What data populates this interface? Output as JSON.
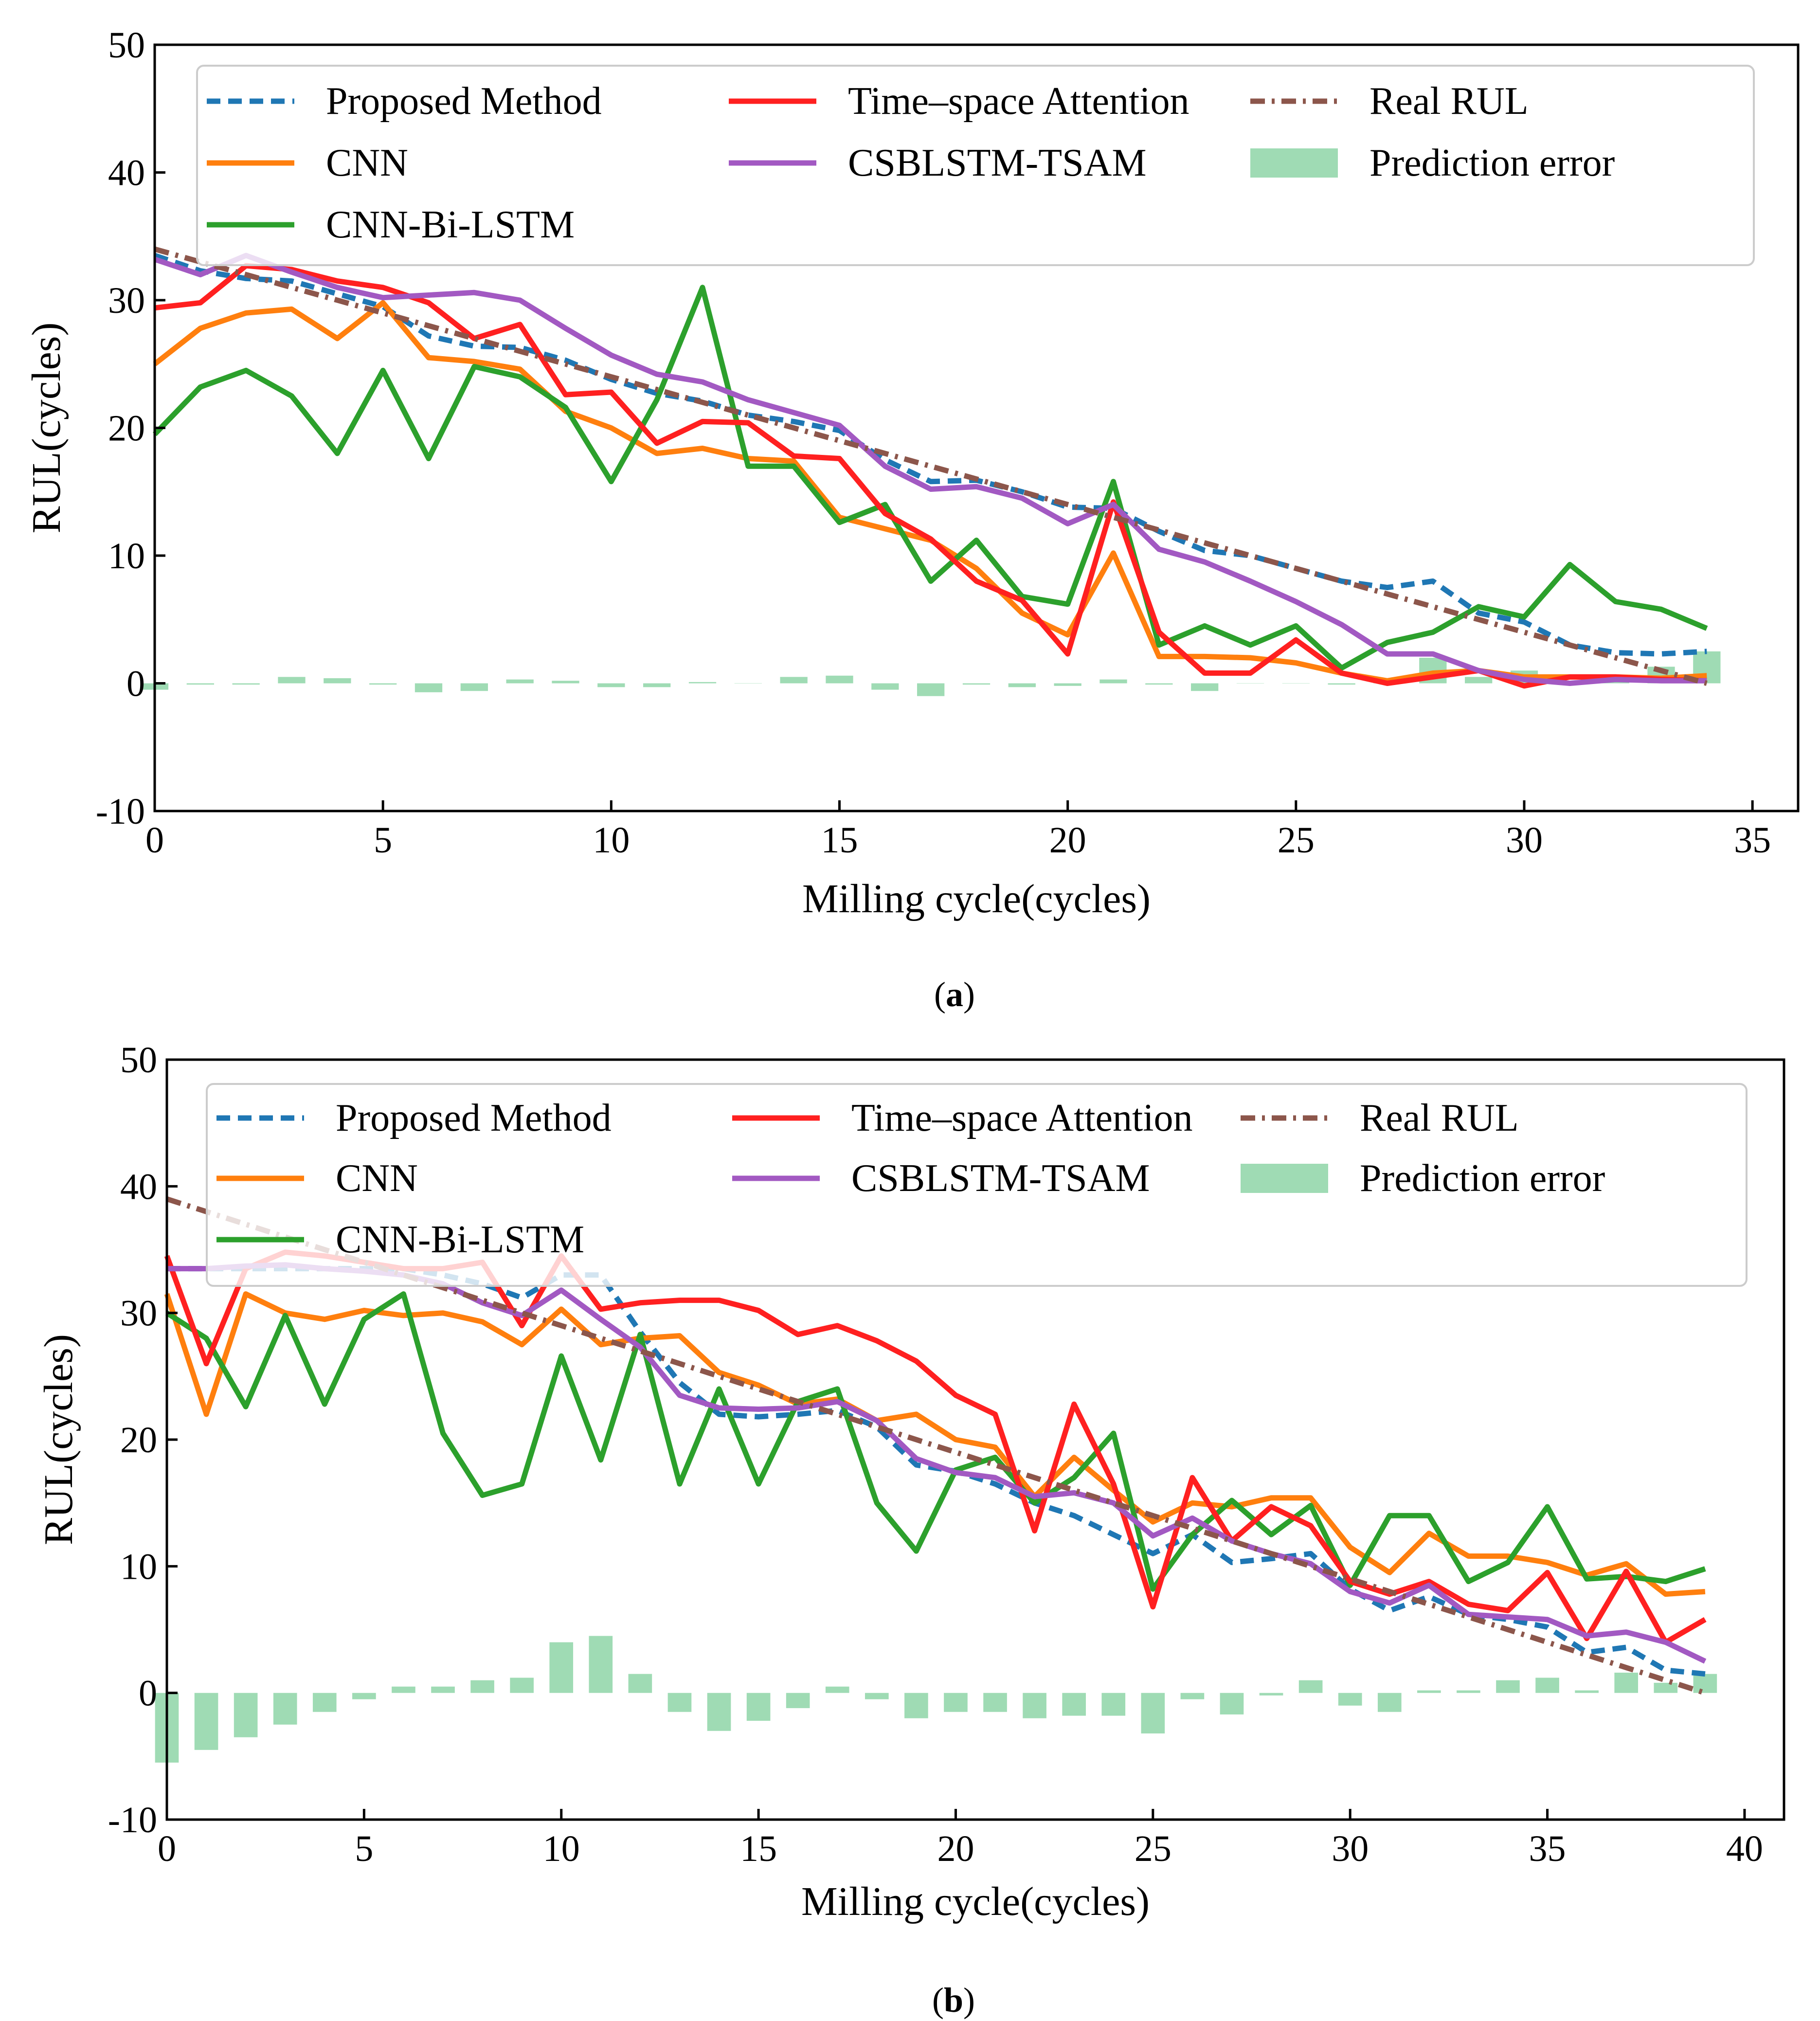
{
  "colors": {
    "proposed": "#1f77b4",
    "cnn": "#ff7f0e",
    "cnn_bilstm": "#2ca02c",
    "time_space": "#ff2020",
    "csblstm": "#a259c2",
    "real": "#8c564b",
    "error": "#7fcf9b"
  },
  "chart_data": [
    {
      "type": "line",
      "caption_letter": "a",
      "caption": "(a)",
      "xlabel": "Milling cycle(cycles)",
      "ylabel": "RUL(cycles)",
      "xlim": [
        0,
        36
      ],
      "ylim": [
        -10,
        50
      ],
      "xticks": [
        0,
        5,
        10,
        15,
        20,
        25,
        30,
        35
      ],
      "yticks": [
        -10,
        0,
        10,
        20,
        30,
        40,
        50
      ],
      "legend": {
        "position": "top",
        "entries": [
          "Proposed Method",
          "Time–space Attention",
          "Real RUL",
          "CNN",
          "CSBLSTM-TSAM",
          "Prediction error",
          "CNN-Bi-LSTM"
        ]
      },
      "x": [
        0,
        1,
        2,
        3,
        4,
        5,
        6,
        7,
        8,
        9,
        10,
        11,
        12,
        13,
        14,
        15,
        16,
        17,
        18,
        19,
        20,
        21,
        22,
        23,
        24,
        25,
        26,
        27,
        28,
        29,
        30,
        31,
        32,
        33,
        34
      ],
      "series": [
        {
          "name": "Proposed Method",
          "key": "proposed",
          "style": "dashed",
          "values": [
            33.5,
            32.3,
            31.7,
            31.5,
            30.5,
            29.5,
            27.2,
            26.4,
            26.3,
            25.3,
            23.8,
            22.7,
            22.1,
            21,
            20.5,
            19.8,
            17.5,
            15.8,
            15.9,
            15,
            13.8,
            13.7,
            11.9,
            10.4,
            10,
            9,
            8,
            7.5,
            8,
            5.5,
            4.8,
            3,
            2.4,
            2.3,
            2.5
          ]
        },
        {
          "name": "CNN",
          "key": "cnn",
          "style": "solid",
          "values": [
            25,
            27.8,
            29,
            29.3,
            27,
            29.8,
            25.5,
            25.2,
            24.6,
            21.3,
            20,
            18,
            18.4,
            17.6,
            17.4,
            13,
            12.1,
            11.2,
            9,
            5.5,
            3.8,
            10.2,
            2.1,
            2.1,
            2,
            1.6,
            0.8,
            0.2,
            0.8,
            1,
            0.5,
            0.5,
            0.5,
            0.4,
            0.6
          ]
        },
        {
          "name": "CNN-Bi-LSTM",
          "key": "cnn_bilstm",
          "style": "solid",
          "values": [
            19.5,
            23.2,
            24.5,
            22.5,
            18,
            24.5,
            17.6,
            24.8,
            24,
            21.6,
            15.8,
            22.2,
            31,
            17,
            17,
            12.6,
            14,
            8,
            11.2,
            6.8,
            6.2,
            15.8,
            3,
            4.5,
            3,
            4.5,
            1.2,
            3.2,
            4,
            6,
            5.2,
            9.3,
            6.4,
            5.8,
            4.3
          ]
        },
        {
          "name": "Time–space Attention",
          "key": "time_space",
          "style": "solid",
          "values": [
            29.4,
            29.8,
            32.7,
            32.4,
            31.5,
            31,
            29.8,
            27,
            28.1,
            22.6,
            22.8,
            18.8,
            20.5,
            20.4,
            17.8,
            17.6,
            13.3,
            11.3,
            8,
            6.5,
            2.3,
            14.2,
            4,
            0.8,
            0.8,
            3.4,
            0.8,
            0,
            0.5,
            1,
            -0.2,
            0.5,
            0.5,
            0.3,
            0.2
          ]
        },
        {
          "name": "CSBLSTM-TSAM",
          "key": "csblstm",
          "style": "solid",
          "values": [
            33.2,
            32,
            33.5,
            32.2,
            31,
            30.2,
            30.4,
            30.6,
            30,
            27.8,
            25.7,
            24.2,
            23.6,
            22.2,
            21.2,
            20.2,
            17,
            15.2,
            15.4,
            14.5,
            12.5,
            14,
            10.5,
            9.5,
            8,
            6.4,
            4.6,
            2.3,
            2.3,
            1,
            0.3,
            0,
            0.3,
            0.2,
            0.2
          ]
        },
        {
          "name": "Real RUL",
          "key": "real",
          "style": "dashdot",
          "values": [
            34,
            33,
            32,
            31,
            30,
            29,
            28,
            27,
            26,
            25,
            24,
            23,
            22,
            21,
            20,
            19,
            18,
            17,
            16,
            15,
            14,
            13,
            12,
            11,
            10,
            9,
            8,
            7,
            6,
            5,
            4,
            3,
            2,
            1,
            0
          ]
        }
      ],
      "prediction_error": [
        -0.5,
        -0.1,
        -0.1,
        0.5,
        0.4,
        -0.1,
        -0.7,
        -0.6,
        0.3,
        0.2,
        -0.3,
        -0.3,
        0.1,
        0,
        0.5,
        0.6,
        -0.5,
        -1,
        -0.1,
        -0.3,
        -0.2,
        0.3,
        -0.1,
        -0.6,
        0,
        0,
        -0.1,
        0.4,
        2,
        0.5,
        1,
        0,
        0.4,
        1.3,
        2.5
      ]
    },
    {
      "type": "line",
      "caption_letter": "b",
      "caption": "(b)",
      "xlabel": "Milling cycle(cycles)",
      "ylabel": "RUL(cycles)",
      "xlim": [
        0,
        41
      ],
      "ylim": [
        -10,
        50
      ],
      "xticks": [
        0,
        5,
        10,
        15,
        20,
        25,
        30,
        35,
        40
      ],
      "yticks": [
        -10,
        0,
        10,
        20,
        30,
        40,
        50
      ],
      "legend": {
        "position": "top",
        "entries": [
          "Proposed Method",
          "Time–space Attention",
          "Real RUL",
          "CNN",
          "CSBLSTM-TSAM",
          "Prediction error",
          "CNN-Bi-LSTM"
        ]
      },
      "x": [
        0,
        1,
        2,
        3,
        4,
        5,
        6,
        7,
        8,
        9,
        10,
        11,
        12,
        13,
        14,
        15,
        16,
        17,
        18,
        19,
        20,
        21,
        22,
        23,
        24,
        25,
        26,
        27,
        28,
        29,
        30,
        31,
        32,
        33,
        34,
        35,
        36,
        37,
        38,
        39
      ],
      "series": [
        {
          "name": "Proposed Method",
          "key": "proposed",
          "style": "dashed",
          "values": [
            33.5,
            33.5,
            33.5,
            33.5,
            33.5,
            33.5,
            33.5,
            33,
            32.3,
            31.2,
            33,
            33,
            28.5,
            24.5,
            22,
            21.8,
            22,
            22.3,
            21,
            18,
            17.5,
            16.5,
            15,
            14,
            12.5,
            11,
            12.5,
            10.3,
            10.6,
            11,
            8.2,
            6.5,
            7.6,
            6.2,
            5.8,
            5.2,
            3.2,
            3.6,
            1.8,
            1.5
          ]
        },
        {
          "name": "CNN",
          "key": "cnn",
          "style": "solid",
          "values": [
            31.5,
            22,
            31.5,
            30,
            29.5,
            30.2,
            29.8,
            30,
            29.3,
            27.5,
            30.3,
            27.5,
            28,
            28.2,
            25.3,
            24.3,
            22.8,
            23.2,
            21.5,
            22,
            20,
            19.4,
            15.5,
            18.6,
            16,
            13.5,
            15,
            14.7,
            15.4,
            15.4,
            11.5,
            9.5,
            12.6,
            10.8,
            10.8,
            10.3,
            9.3,
            10.2,
            7.8,
            8
          ]
        },
        {
          "name": "CNN-Bi-LSTM",
          "key": "cnn_bilstm",
          "style": "solid",
          "values": [
            30,
            28,
            22.6,
            29.8,
            22.8,
            29.5,
            31.5,
            20.5,
            15.6,
            16.5,
            26.6,
            18.4,
            28.3,
            16.5,
            24,
            16.5,
            23,
            24,
            15,
            11.2,
            17.6,
            18.6,
            15,
            17,
            20.5,
            8.2,
            12.5,
            15.2,
            12.5,
            14.8,
            8.5,
            14,
            14,
            8.8,
            10.3,
            14.7,
            9,
            9.2,
            8.8,
            9.8
          ]
        },
        {
          "name": "Time–space Attention",
          "key": "time_space",
          "style": "solid",
          "values": [
            34.5,
            26,
            33.5,
            34.8,
            34.5,
            34,
            33.5,
            33.5,
            34,
            29,
            34.5,
            30.3,
            30.8,
            31,
            31,
            30.2,
            28.3,
            29,
            27.8,
            26.2,
            23.5,
            22,
            12.8,
            22.8,
            16.5,
            6.8,
            17,
            12,
            14.7,
            13.2,
            8.8,
            7.8,
            8.8,
            7,
            6.5,
            9.5,
            4.3,
            9.6,
            4,
            5.8
          ]
        },
        {
          "name": "CSBLSTM-TSAM",
          "key": "csblstm",
          "style": "solid",
          "values": [
            33.5,
            33.5,
            33.7,
            33.8,
            33.5,
            33.3,
            33,
            32.3,
            30.8,
            29.8,
            31.8,
            29.5,
            27.3,
            23.5,
            22.5,
            22.4,
            22.5,
            23,
            21.5,
            18.5,
            17.4,
            17,
            15.5,
            15.8,
            15,
            12.4,
            13.8,
            12,
            11,
            10.2,
            8,
            7.1,
            8.5,
            6.2,
            6,
            5.8,
            4.5,
            4.8,
            4,
            2.5
          ]
        },
        {
          "name": "Real RUL",
          "key": "real",
          "style": "dashdot",
          "values": [
            39,
            38,
            37,
            36,
            35,
            34,
            33,
            32,
            31,
            30,
            29,
            28,
            27,
            26,
            25,
            24,
            23,
            22,
            21,
            20,
            19,
            18,
            17,
            16,
            15,
            14,
            13,
            12,
            11,
            10,
            9,
            8,
            7,
            6,
            5,
            4,
            3,
            2,
            1,
            0
          ]
        }
      ],
      "prediction_error": [
        -5.5,
        -4.5,
        -3.5,
        -2.5,
        -1.5,
        -0.5,
        0.5,
        0.5,
        1,
        1.2,
        4,
        4.5,
        1.5,
        -1.5,
        -3,
        -2.2,
        -1.2,
        0.5,
        -0.5,
        -2,
        -1.5,
        -1.5,
        -2,
        -1.8,
        -1.8,
        -3.2,
        -0.5,
        -1.7,
        -0.2,
        1,
        -1,
        -1.5,
        0.2,
        0.2,
        1,
        1.2,
        0.2,
        1.6,
        0.8,
        1.5
      ]
    }
  ]
}
